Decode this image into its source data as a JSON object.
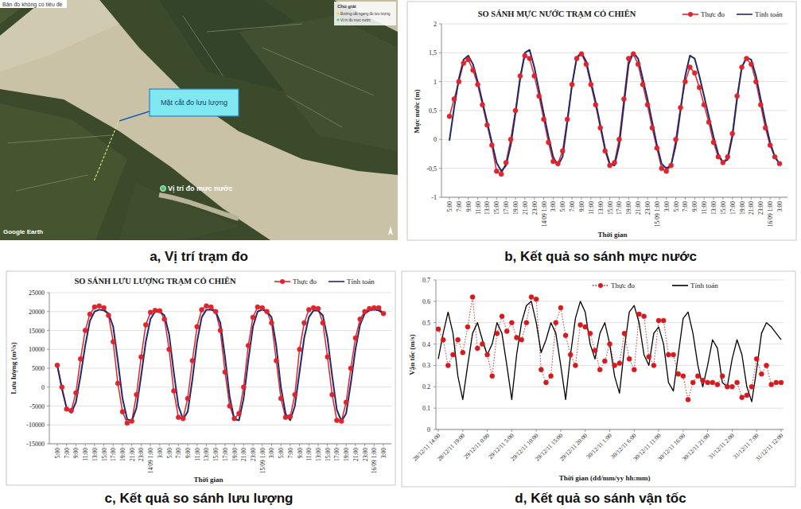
{
  "chart_data": [
    {
      "type": "line",
      "title": "SO SÁNH MỰC NƯỚC TRẠM CỎ CHIÊN",
      "x_label": "Thời gian",
      "y_label": "Mực nước (m)",
      "categories": [
        "5:00",
        null,
        "7:00",
        null,
        "9:00",
        null,
        "11:00",
        null,
        "13:00",
        null,
        "15:00",
        null,
        "17:00",
        null,
        "19:00",
        null,
        "21:00",
        null,
        "23:00",
        null,
        "14/09 1:00",
        null,
        "3:00",
        null,
        "5:00",
        null,
        "7:00",
        null,
        "9:00",
        null,
        "11:00",
        null,
        "13:00",
        null,
        "15:00",
        null,
        "17:00",
        null,
        "19:00",
        null,
        "21:00",
        null,
        "23:00",
        null,
        "15/09 1:00",
        null,
        "3:00",
        null,
        "5:00",
        null,
        "7:00",
        null,
        "9:00",
        null,
        "11:00",
        null,
        "13:00",
        null,
        "15:00",
        null,
        "17:00",
        null,
        "19:00",
        null,
        "21:00",
        null,
        "23:00",
        null,
        "16/09 1:00",
        null,
        "3:00"
      ],
      "series": [
        {
          "name": "Thực đo",
          "color": "#e3232b",
          "marker": "circle",
          "line_style": "solid",
          "values": [
            0.4,
            0.7,
            1.0,
            1.32,
            1.38,
            1.2,
            0.95,
            0.6,
            0.25,
            -0.1,
            -0.55,
            -0.6,
            -0.4,
            0.0,
            0.5,
            1.1,
            1.45,
            1.4,
            1.1,
            0.75,
            0.35,
            -0.05,
            -0.38,
            -0.42,
            -0.2,
            0.35,
            0.95,
            1.4,
            1.48,
            1.3,
            0.95,
            0.6,
            0.2,
            -0.2,
            -0.45,
            -0.4,
            0.0,
            0.7,
            1.4,
            1.48,
            1.3,
            0.95,
            0.6,
            0.2,
            -0.15,
            -0.5,
            -0.55,
            -0.45,
            0.0,
            0.55,
            1.0,
            1.25,
            1.15,
            0.9,
            0.6,
            0.3,
            -0.05,
            -0.3,
            -0.4,
            -0.3,
            0.1,
            0.75,
            1.25,
            1.4,
            1.3,
            1.0,
            0.6,
            0.2,
            -0.1,
            -0.3,
            -0.42
          ]
        },
        {
          "name": "Tính toán",
          "color": "#1f2a6e",
          "marker": "none",
          "line_style": "solid",
          "values": [
            -0.02,
            0.55,
            1.05,
            1.38,
            1.45,
            1.3,
            1.0,
            0.65,
            0.3,
            -0.05,
            -0.4,
            -0.55,
            -0.45,
            -0.1,
            0.45,
            1.05,
            1.5,
            1.55,
            1.25,
            0.85,
            0.45,
            0.05,
            -0.3,
            -0.45,
            -0.3,
            0.3,
            0.95,
            1.42,
            1.5,
            1.35,
            1.0,
            0.65,
            0.25,
            -0.15,
            -0.42,
            -0.45,
            -0.1,
            0.6,
            1.3,
            1.5,
            1.4,
            1.05,
            0.7,
            0.3,
            -0.1,
            -0.42,
            -0.5,
            -0.45,
            -0.1,
            0.5,
            1.1,
            1.45,
            1.4,
            1.1,
            0.75,
            0.4,
            0.05,
            -0.25,
            -0.4,
            -0.35,
            0.05,
            0.7,
            1.25,
            1.42,
            1.38,
            1.1,
            0.7,
            0.3,
            -0.05,
            -0.3,
            -0.42
          ]
        }
      ],
      "ylim": [
        -1,
        2
      ],
      "yticks": [
        -1,
        {
          "value": -0.5,
          "label": "-0,5"
        },
        0,
        {
          "value": 0.5,
          "label": "0,5"
        },
        1,
        {
          "value": 1.5,
          "label": "1,5"
        },
        2
      ],
      "grid": true,
      "legend": "top-right"
    },
    {
      "type": "line",
      "title": "SO SÁNH LƯU LƯỢNG TRẠM CỎ CHIÊN",
      "x_label": "Thời gian",
      "y_label": "Lưu lượng (m³/s)",
      "categories": [
        "5:00",
        null,
        "7:00",
        null,
        "9:00",
        null,
        "11:00",
        null,
        "13:00",
        null,
        "15:00",
        null,
        "17:00",
        null,
        "19:00",
        null,
        "21:00",
        null,
        "23:00",
        null,
        "14/09 1:00",
        null,
        "3:00",
        null,
        "5:00",
        null,
        "7:00",
        null,
        "9:00",
        null,
        "11:00",
        null,
        "13:00",
        null,
        "15:00",
        null,
        "17:00",
        null,
        "19:00",
        null,
        "21:00",
        null,
        "23:00",
        null,
        "15/09 1:00",
        null,
        "3:00",
        null,
        "5:00",
        null,
        "7:00",
        null,
        "9:00",
        null,
        "11:00",
        null,
        "13:00",
        null,
        "15:00",
        null,
        "17:00",
        null,
        "19:00",
        null,
        "21:00",
        null,
        "23:00",
        null,
        "16/09 1:00",
        null,
        "3:00"
      ],
      "series": [
        {
          "name": "Thực đo",
          "color": "#e3232b",
          "marker": "circle",
          "line_style": "solid",
          "values": [
            5800,
            0,
            -5800,
            -6200,
            -1500,
            7500,
            15000,
            19300,
            21200,
            21500,
            21000,
            19000,
            12000,
            1000,
            -6500,
            -9500,
            -9000,
            -2000,
            8000,
            16500,
            19800,
            20300,
            20200,
            18000,
            10000,
            -1000,
            -8000,
            -8300,
            -3000,
            7000,
            16000,
            20500,
            21500,
            21200,
            20000,
            15000,
            4000,
            -5000,
            -8300,
            -7000,
            0,
            11000,
            18500,
            21200,
            21000,
            20000,
            17000,
            7000,
            -3000,
            -8000,
            -7800,
            -2000,
            10000,
            17000,
            20500,
            21000,
            20800,
            17000,
            8000,
            -2000,
            -8800,
            -9000,
            -4000,
            5000,
            13000,
            18000,
            20000,
            20800,
            21000,
            21000,
            19500
          ]
        },
        {
          "name": "Tính toán",
          "color": "#1f2a6e",
          "marker": "none",
          "line_style": "solid",
          "values": [
            5800,
            -500,
            -5500,
            -6800,
            -4000,
            3000,
            11000,
            17500,
            20000,
            20500,
            20300,
            19500,
            16000,
            7000,
            -3000,
            -8500,
            -9000,
            -5500,
            3000,
            12000,
            18000,
            20000,
            20000,
            19000,
            14000,
            4000,
            -5000,
            -8500,
            -6500,
            2000,
            12000,
            18500,
            20500,
            20500,
            20000,
            17000,
            8000,
            -2500,
            -8500,
            -8800,
            -3000,
            7000,
            16000,
            20000,
            20500,
            20000,
            18500,
            11000,
            0,
            -7000,
            -8800,
            -5000,
            4000,
            13000,
            18500,
            20300,
            20200,
            19000,
            13000,
            3000,
            -6000,
            -9000,
            -7000,
            1000,
            10000,
            16500,
            19500,
            20300,
            20500,
            20300,
            19500
          ]
        }
      ],
      "ylim": [
        -15000,
        25000
      ],
      "yticks": [
        -15000,
        -10000,
        -5000,
        0,
        5000,
        10000,
        15000,
        20000,
        25000
      ],
      "grid": true,
      "legend": "top-right"
    },
    {
      "type": "line",
      "x_label": "Thời gian (dd/mm/yy hh:mm)",
      "y_label": "Vận tốc (m/s)",
      "categories": [
        "28/12/11 14:00",
        null,
        null,
        null,
        null,
        "28/12/11 19:00",
        null,
        null,
        null,
        null,
        "29/12/11 0:00",
        null,
        null,
        null,
        null,
        "29/12/11 5:00",
        null,
        null,
        null,
        null,
        "29/12/11 10:00",
        null,
        null,
        null,
        null,
        "29/12/11 15:00",
        null,
        null,
        null,
        null,
        "29/12/11 20:00",
        null,
        null,
        null,
        null,
        "30/12/11 1:00",
        null,
        null,
        null,
        null,
        "30/12/11 6:00",
        null,
        null,
        null,
        null,
        "30/12/11 11:00",
        null,
        null,
        null,
        null,
        "30/12/11 16:00",
        null,
        null,
        null,
        null,
        "30/12/11 21:00",
        null,
        null,
        null,
        null,
        "31/12/11 2:00",
        null,
        null,
        null,
        null,
        "31/12/11 7:00",
        null,
        null,
        null,
        null,
        "31/12/11 12:00"
      ],
      "series": [
        {
          "name": "Thực đo",
          "color": "#d7191c",
          "marker": "circle",
          "line_style": "dotted",
          "values": [
            0.47,
            0.42,
            0.3,
            0.35,
            0.42,
            0.36,
            0.48,
            0.62,
            0.38,
            0.4,
            0.35,
            0.25,
            0.45,
            0.53,
            0.46,
            0.5,
            0.43,
            0.42,
            0.5,
            0.62,
            0.61,
            0.28,
            0.22,
            0.25,
            0.5,
            0.57,
            0.44,
            0.35,
            0.3,
            0.49,
            0.48,
            0.45,
            0.37,
            0.28,
            0.32,
            0.4,
            0.3,
            0.31,
            0.45,
            0.33,
            0.28,
            0.54,
            0.53,
            0.34,
            0.3,
            0.51,
            0.51,
            0.35,
            0.35,
            0.26,
            0.25,
            0.14,
            0.22,
            0.25,
            0.23,
            0.22,
            0.22,
            0.21,
            0.25,
            0.2,
            0.2,
            0.22,
            0.15,
            0.16,
            0.2,
            0.33,
            0.26,
            0.3,
            0.21,
            0.22,
            0.22
          ]
        },
        {
          "name": "Tính toán",
          "color": "#000000",
          "marker": "none",
          "line_style": "solid",
          "values": [
            0.33,
            0.45,
            0.55,
            0.45,
            0.25,
            0.14,
            0.3,
            0.45,
            0.5,
            0.42,
            0.35,
            0.4,
            0.5,
            0.45,
            0.3,
            0.14,
            0.35,
            0.5,
            0.58,
            0.6,
            0.5,
            0.36,
            0.42,
            0.5,
            0.45,
            0.3,
            0.14,
            0.35,
            0.52,
            0.6,
            0.55,
            0.4,
            0.33,
            0.45,
            0.5,
            0.4,
            0.25,
            0.17,
            0.38,
            0.55,
            0.58,
            0.5,
            0.35,
            0.3,
            0.45,
            0.48,
            0.4,
            0.22,
            0.18,
            0.35,
            0.52,
            0.55,
            0.45,
            0.3,
            0.2,
            0.3,
            0.42,
            0.38,
            0.22,
            0.2,
            0.33,
            0.42,
            0.35,
            0.2,
            0.13,
            0.28,
            0.45,
            0.5,
            0.48,
            0.45,
            0.42
          ]
        }
      ],
      "ylim": [
        0,
        0.7
      ],
      "yticks": [
        0,
        0.1,
        0.2,
        0.3,
        0.4,
        0.5,
        0.6,
        0.7
      ],
      "grid": true,
      "legend": "top-right"
    }
  ],
  "map": {
    "title": "Bản đồ không có tiêu đề",
    "legend_title": "Chú giải",
    "legend_items": [
      "Đường cắt ngang đo lưu lượng",
      "Vị trí đo mực nước"
    ],
    "annotations": [
      "Mặt cắt đo lưu lượng",
      "Vị trí đo mực nước"
    ],
    "credit": "Google Earth"
  },
  "captions": [
    "a, Vị trí trạm đo",
    "b, Kết quả so sánh mực nước",
    "c, Kết quả so sánh lưu lượng",
    "d, Kết quả so sánh vận tốc"
  ]
}
